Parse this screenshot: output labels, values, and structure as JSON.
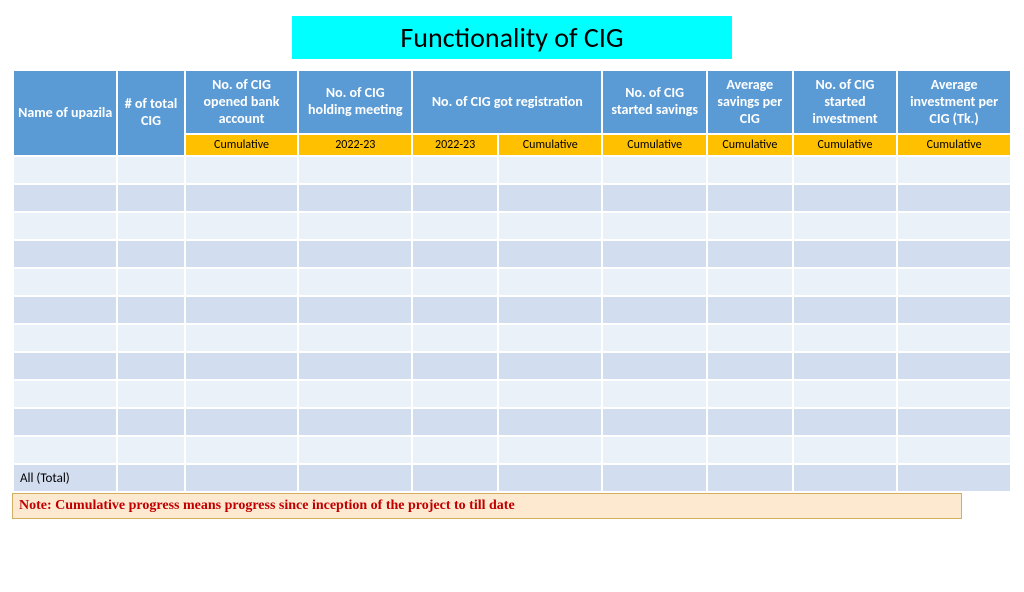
{
  "colors": {
    "title_bg": "#00ffff",
    "title_text": "#000000",
    "header_bg": "#5b9bd5",
    "header_text": "#ffffff",
    "subheader_bg": "#ffc000",
    "subheader_text": "#000000",
    "row_odd": "#eaf1f8",
    "row_even": "#d2deef",
    "note_bg": "#fce9d0",
    "note_text": "#c00000"
  },
  "title": "Functionality of CIG",
  "columns": {
    "widths_pct": [
      11,
      7,
      12,
      12,
      9,
      11,
      11,
      9,
      11,
      12
    ],
    "headers": [
      {
        "label": "Name of upazila",
        "colspan": 1,
        "rowspan": 2
      },
      {
        "label": "# of total CIG",
        "colspan": 1,
        "rowspan": 2
      },
      {
        "label": "No. of CIG opened bank account",
        "colspan": 1,
        "rowspan": 1
      },
      {
        "label": "No. of CIG holding meeting",
        "colspan": 1,
        "rowspan": 1
      },
      {
        "label": "No. of CIG got registration",
        "colspan": 2,
        "rowspan": 1
      },
      {
        "label": "No. of CIG started savings",
        "colspan": 1,
        "rowspan": 1
      },
      {
        "label": "Average savings per CIG",
        "colspan": 1,
        "rowspan": 1
      },
      {
        "label": "No. of CIG started investment",
        "colspan": 1,
        "rowspan": 1
      },
      {
        "label": "Average investment per CIG (Tk.)",
        "colspan": 1,
        "rowspan": 1
      }
    ],
    "subheaders": [
      "Cumulative",
      "2022-23",
      "2022-23",
      "Cumulative",
      "Cumulative",
      "Cumulative",
      "Cumulative",
      "Cumulative"
    ]
  },
  "rows": [
    [
      "",
      "",
      "",
      "",
      "",
      "",
      "",
      "",
      "",
      ""
    ],
    [
      "",
      "",
      "",
      "",
      "",
      "",
      "",
      "",
      "",
      ""
    ],
    [
      "",
      "",
      "",
      "",
      "",
      "",
      "",
      "",
      "",
      ""
    ],
    [
      "",
      "",
      "",
      "",
      "",
      "",
      "",
      "",
      "",
      ""
    ],
    [
      "",
      "",
      "",
      "",
      "",
      "",
      "",
      "",
      "",
      ""
    ],
    [
      "",
      "",
      "",
      "",
      "",
      "",
      "",
      "",
      "",
      ""
    ],
    [
      "",
      "",
      "",
      "",
      "",
      "",
      "",
      "",
      "",
      ""
    ],
    [
      "",
      "",
      "",
      "",
      "",
      "",
      "",
      "",
      "",
      ""
    ],
    [
      "",
      "",
      "",
      "",
      "",
      "",
      "",
      "",
      "",
      ""
    ],
    [
      "",
      "",
      "",
      "",
      "",
      "",
      "",
      "",
      "",
      ""
    ],
    [
      "",
      "",
      "",
      "",
      "",
      "",
      "",
      "",
      "",
      ""
    ],
    [
      "All (Total)",
      "",
      "",
      "",
      "",
      "",
      "",
      "",
      "",
      ""
    ]
  ],
  "note": "Note: Cumulative progress means progress since inception of the project to till date"
}
